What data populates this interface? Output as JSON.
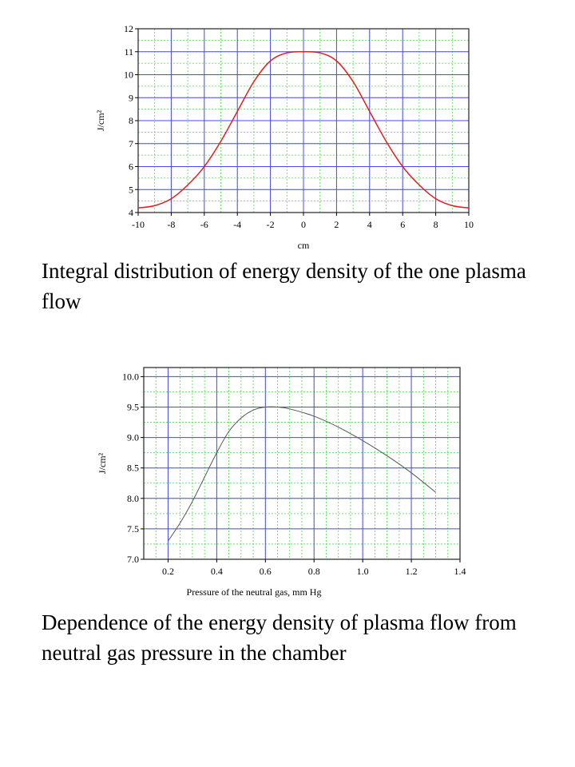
{
  "captions": {
    "chart1": "Integral distribution of energy density of the one plasma flow",
    "chart2": "Dependence of the energy density of plasma flow from neutral gas pressure in the chamber"
  },
  "chart_data": [
    {
      "type": "line",
      "title": "",
      "xlabel": "cm",
      "ylabel": "J/cm²",
      "xlim": [
        -10,
        10
      ],
      "ylim": [
        4,
        12
      ],
      "x_ticks": [
        -10,
        -8,
        -6,
        -4,
        -2,
        0,
        2,
        4,
        6,
        8,
        10
      ],
      "y_ticks": [
        4,
        5,
        6,
        7,
        8,
        9,
        10,
        11,
        12
      ],
      "grid": true,
      "colors": {
        "major_grid": "#4a4af0",
        "minor_grid": "#4fd84f",
        "line": "#e01f1f"
      },
      "series": [
        {
          "x": [
            -10,
            -9,
            -8,
            -7,
            -6,
            -5,
            -4,
            -3,
            -2,
            -1,
            0,
            1,
            2,
            3,
            4,
            5,
            6,
            7,
            8,
            9,
            10
          ],
          "y": [
            4.2,
            4.3,
            4.6,
            5.2,
            6.0,
            7.1,
            8.4,
            9.7,
            10.6,
            10.95,
            11.0,
            10.95,
            10.6,
            9.7,
            8.4,
            7.1,
            6.0,
            5.2,
            4.6,
            4.3,
            4.2
          ]
        }
      ]
    },
    {
      "type": "line",
      "title": "",
      "xlabel": "Pressure of the neutral gas, mm Hg",
      "ylabel": "J/cm²",
      "xlim": [
        0.1,
        1.4
      ],
      "ylim": [
        7.0,
        10.15
      ],
      "x_ticks": [
        "0.2",
        "0.4",
        "0.6",
        "0.8",
        "1.0",
        "1.2",
        "1.4"
      ],
      "y_ticks": [
        "7.0",
        "7.5",
        "8.0",
        "8.5",
        "9.0",
        "9.5",
        "10.0"
      ],
      "grid": true,
      "colors": {
        "major_grid": "#4a4af0",
        "minor_grid": "#4fd84f",
        "line": "#555555"
      },
      "series": [
        {
          "x": [
            0.2,
            0.25,
            0.3,
            0.35,
            0.4,
            0.45,
            0.5,
            0.55,
            0.6,
            0.65,
            0.7,
            0.8,
            0.9,
            1.0,
            1.1,
            1.2,
            1.3
          ],
          "y": [
            7.3,
            7.6,
            7.95,
            8.35,
            8.75,
            9.1,
            9.32,
            9.45,
            9.5,
            9.5,
            9.47,
            9.35,
            9.17,
            8.95,
            8.7,
            8.42,
            8.1
          ]
        }
      ]
    }
  ]
}
